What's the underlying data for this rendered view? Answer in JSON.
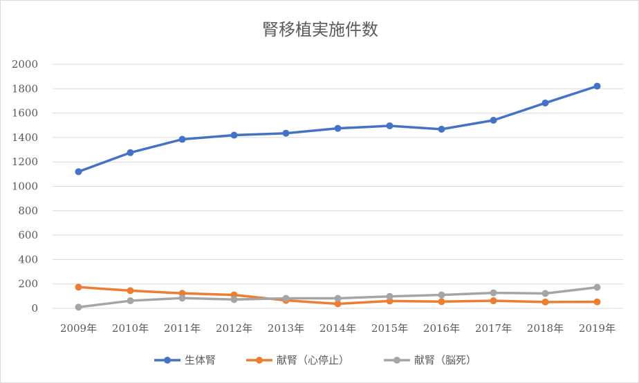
{
  "chart_data": {
    "type": "line",
    "title": "腎移植実施件数",
    "categories": [
      "2009年",
      "2010年",
      "2011年",
      "2012年",
      "2013年",
      "2014年",
      "2015年",
      "2016年",
      "2017年",
      "2018年",
      "2019年"
    ],
    "series": [
      {
        "name": "生体腎",
        "color": "#4472C4",
        "values": [
          1120,
          1276,
          1385,
          1419,
          1435,
          1475,
          1496,
          1468,
          1541,
          1683,
          1821
        ]
      },
      {
        "name": "献腎（心停止）",
        "color": "#ED7D31",
        "values": [
          174,
          145,
          123,
          110,
          65,
          37,
          60,
          55,
          62,
          52,
          53
        ]
      },
      {
        "name": "献腎（脳死）",
        "color": "#A5A5A5",
        "values": [
          10,
          62,
          84,
          72,
          82,
          82,
          98,
          110,
          127,
          122,
          172
        ]
      }
    ],
    "yticks": [
      "0",
      "200",
      "400",
      "600",
      "800",
      "1000",
      "1200",
      "1400",
      "1600",
      "1800",
      "2000"
    ],
    "ylim": [
      0,
      2000
    ],
    "grid": true,
    "legend_position": "bottom"
  }
}
